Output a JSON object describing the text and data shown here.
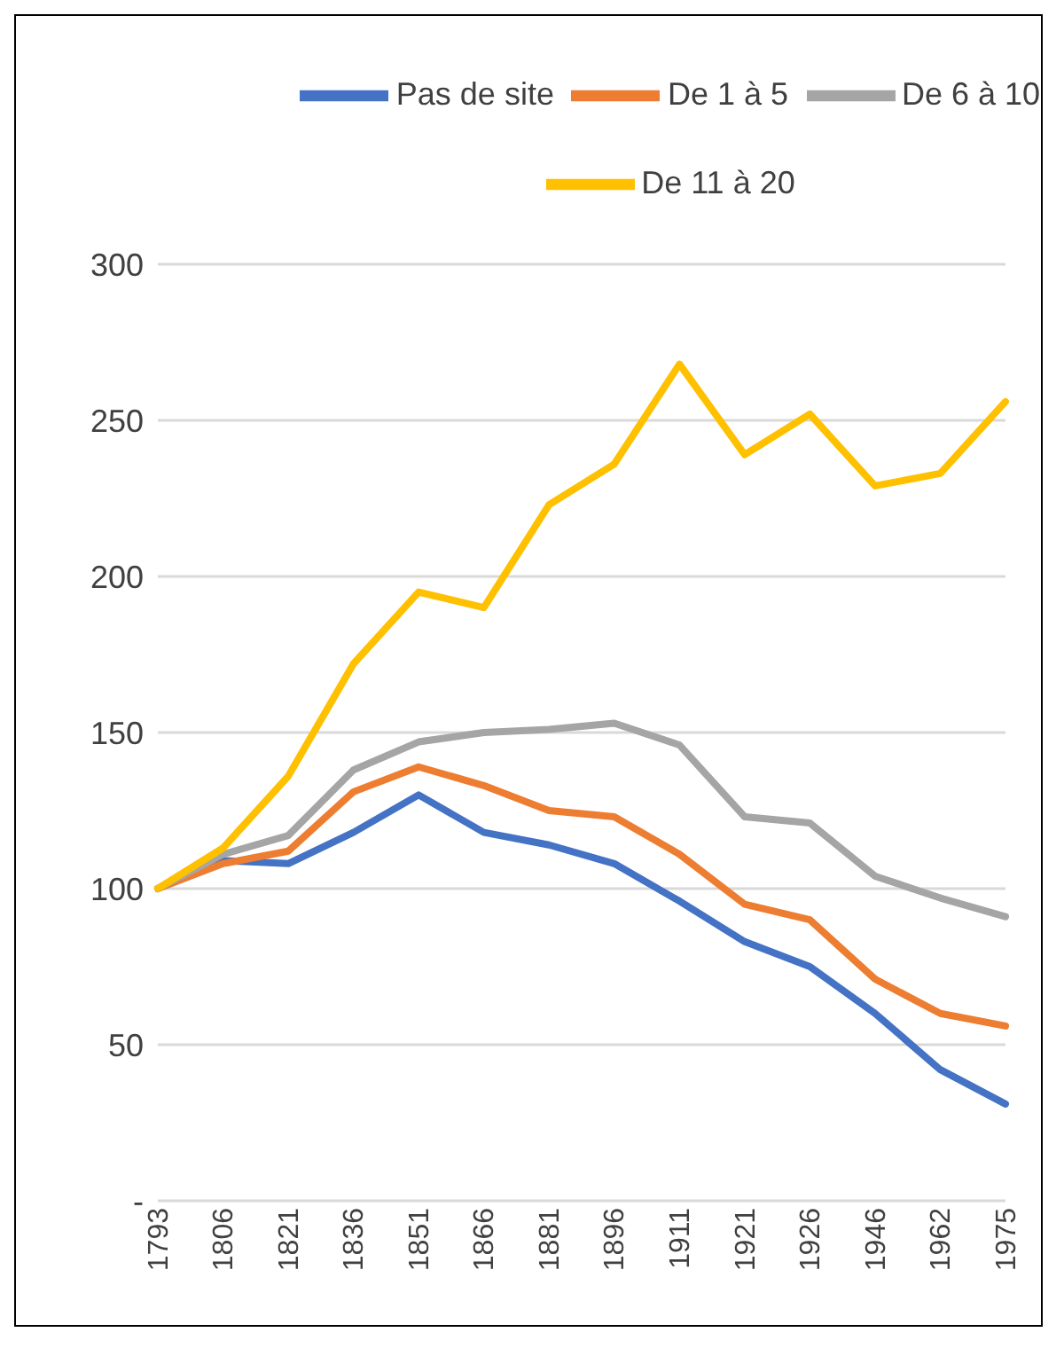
{
  "chart_data": {
    "type": "line",
    "categories": [
      "1793",
      "1806",
      "1821",
      "1836",
      "1851",
      "1866",
      "1881",
      "1896",
      "1911",
      "1921",
      "1926",
      "1946",
      "1962",
      "1975"
    ],
    "series": [
      {
        "name": "Pas de site",
        "color": "#4472c4",
        "values": [
          100,
          109,
          108,
          118,
          130,
          118,
          114,
          108,
          96,
          83,
          75,
          60,
          42,
          31
        ]
      },
      {
        "name": "De 1 à 5",
        "color": "#ed7d31",
        "values": [
          100,
          108,
          112,
          131,
          139,
          133,
          125,
          123,
          111,
          95,
          90,
          71,
          60,
          56
        ]
      },
      {
        "name": "De 6 à 10",
        "color": "#a5a5a5",
        "values": [
          100,
          111,
          117,
          138,
          147,
          150,
          151,
          153,
          146,
          123,
          121,
          104,
          97,
          91
        ]
      },
      {
        "name": "De 11 à 20",
        "color": "#ffc000",
        "values": [
          100,
          113,
          136,
          172,
          195,
          190,
          223,
          236,
          268,
          239,
          252,
          229,
          233,
          256
        ]
      }
    ],
    "ylim": [
      0,
      300
    ],
    "yticks": [
      {
        "value": 0,
        "label": "-"
      },
      50,
      100,
      150,
      200,
      250,
      300
    ],
    "grid": "y",
    "legend": "top",
    "marker": "none",
    "line_style": "solid"
  }
}
